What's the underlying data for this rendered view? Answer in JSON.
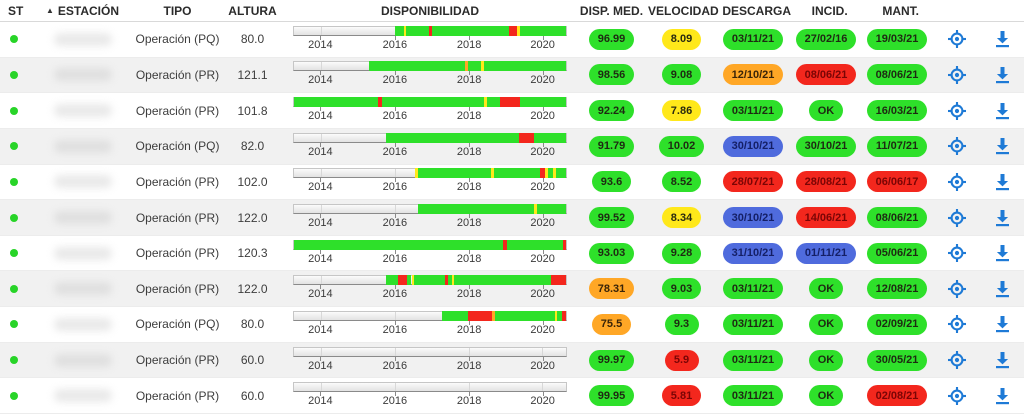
{
  "header": {
    "st": "ST",
    "estacion": "ESTACIÓN",
    "sort_icon": "▲",
    "tipo": "TIPO",
    "altura": "ALTURA",
    "disponibilidad": "DISPONIBILIDAD",
    "disp_med": "DISP. MED.",
    "velocidad": "VELOCIDAD",
    "descarga": "DESCARGA",
    "incid": "INCID.",
    "mant": "MANT."
  },
  "colors": {
    "green": "#2ee02a",
    "yellow": "#ffe81a",
    "orange": "#ffa726",
    "red": "#f3271d",
    "blue": "#4f6bdd",
    "status_dot": "#28d428",
    "icon_blue": "#1e7ad6"
  },
  "pill_text_colors": {
    "green": "#1e2a12",
    "yellow": "#2a2a10",
    "orange": "#3a2408",
    "red": "#7a0505",
    "blue": "#141f66"
  },
  "timeline": {
    "axis_years": [
      "2014",
      "2016",
      "2018",
      "2020"
    ],
    "tick_percents": [
      10,
      37.2,
      64.3,
      91.1
    ]
  },
  "rows": [
    {
      "status": "ok",
      "tipo": "Operación (PQ)",
      "altura": "80.0",
      "bar": [
        [
          37,
          40.3,
          "g"
        ],
        [
          40.3,
          41.3,
          "y"
        ],
        [
          41.3,
          49.5,
          "g"
        ],
        [
          49.5,
          50.6,
          "r"
        ],
        [
          50.6,
          79,
          "g"
        ],
        [
          79,
          82,
          "r"
        ],
        [
          82,
          83.2,
          "y"
        ],
        [
          83.2,
          100,
          "g"
        ]
      ],
      "disp_med": {
        "text": "96.99",
        "color": "green"
      },
      "velocidad": {
        "text": "8.09",
        "color": "yellow"
      },
      "descarga": {
        "text": "03/11/21",
        "color": "green"
      },
      "incid": {
        "text": "27/02/16",
        "color": "green"
      },
      "mant": {
        "text": "19/03/21",
        "color": "green"
      }
    },
    {
      "status": "ok",
      "tipo": "Operación (PR)",
      "altura": "121.1",
      "bar": [
        [
          27.5,
          62.8,
          "g"
        ],
        [
          62.8,
          63.8,
          "o"
        ],
        [
          63.8,
          68.8,
          "g"
        ],
        [
          68.8,
          69.8,
          "y"
        ],
        [
          69.8,
          100,
          "g"
        ]
      ],
      "disp_med": {
        "text": "98.56",
        "color": "green"
      },
      "velocidad": {
        "text": "9.08",
        "color": "green"
      },
      "descarga": {
        "text": "12/10/21",
        "color": "orange"
      },
      "incid": {
        "text": "08/06/21",
        "color": "red"
      },
      "mant": {
        "text": "08/06/21",
        "color": "green"
      }
    },
    {
      "status": "ok",
      "tipo": "Operación (PR)",
      "altura": "101.8",
      "bar": [
        [
          0,
          31,
          "g"
        ],
        [
          31,
          32.2,
          "r"
        ],
        [
          32.2,
          69.8,
          "g"
        ],
        [
          69.8,
          70.8,
          "y"
        ],
        [
          70.8,
          75.8,
          "g"
        ],
        [
          75.8,
          83,
          "r"
        ],
        [
          83,
          100,
          "g"
        ]
      ],
      "disp_med": {
        "text": "92.24",
        "color": "green"
      },
      "velocidad": {
        "text": "7.86",
        "color": "yellow"
      },
      "descarga": {
        "text": "03/11/21",
        "color": "green"
      },
      "incid": {
        "text": "OK",
        "color": "green"
      },
      "mant": {
        "text": "16/03/21",
        "color": "green"
      }
    },
    {
      "status": "ok",
      "tipo": "Operación (PQ)",
      "altura": "82.0",
      "bar": [
        [
          34,
          82.8,
          "g"
        ],
        [
          82.8,
          88.3,
          "r"
        ],
        [
          88.3,
          100,
          "g"
        ]
      ],
      "disp_med": {
        "text": "91.79",
        "color": "green"
      },
      "velocidad": {
        "text": "10.02",
        "color": "green"
      },
      "descarga": {
        "text": "30/10/21",
        "color": "blue"
      },
      "incid": {
        "text": "30/10/21",
        "color": "green"
      },
      "mant": {
        "text": "11/07/21",
        "color": "green"
      }
    },
    {
      "status": "ok",
      "tipo": "Operación (PR)",
      "altura": "102.0",
      "bar": [
        [
          44.5,
          45.6,
          "y"
        ],
        [
          45.6,
          72.4,
          "g"
        ],
        [
          72.4,
          73.4,
          "y"
        ],
        [
          73.4,
          90.3,
          "g"
        ],
        [
          90.3,
          92.4,
          "r"
        ],
        [
          92.4,
          93.4,
          "y"
        ],
        [
          93.4,
          95.2,
          "g"
        ],
        [
          95.2,
          96.2,
          "y"
        ],
        [
          96.2,
          100,
          "g"
        ]
      ],
      "disp_med": {
        "text": "93.6",
        "color": "green"
      },
      "velocidad": {
        "text": "8.52",
        "color": "green"
      },
      "descarga": {
        "text": "28/07/21",
        "color": "red"
      },
      "incid": {
        "text": "28/08/21",
        "color": "red"
      },
      "mant": {
        "text": "06/06/17",
        "color": "red"
      }
    },
    {
      "status": "ok",
      "tipo": "Operación (PR)",
      "altura": "122.0",
      "bar": [
        [
          45.5,
          88.4,
          "g"
        ],
        [
          88.4,
          89.5,
          "y"
        ],
        [
          89.5,
          100,
          "g"
        ]
      ],
      "disp_med": {
        "text": "99.52",
        "color": "green"
      },
      "velocidad": {
        "text": "8.34",
        "color": "yellow"
      },
      "descarga": {
        "text": "30/10/21",
        "color": "blue"
      },
      "incid": {
        "text": "14/06/21",
        "color": "red"
      },
      "mant": {
        "text": "08/06/21",
        "color": "green"
      }
    },
    {
      "status": "ok",
      "tipo": "Operación (PR)",
      "altura": "120.3",
      "bar": [
        [
          0,
          77,
          "g"
        ],
        [
          77,
          78.2,
          "r"
        ],
        [
          78.2,
          98.8,
          "g"
        ],
        [
          98.8,
          100,
          "r"
        ]
      ],
      "disp_med": {
        "text": "93.03",
        "color": "green"
      },
      "velocidad": {
        "text": "9.28",
        "color": "green"
      },
      "descarga": {
        "text": "31/10/21",
        "color": "blue"
      },
      "incid": {
        "text": "01/11/21",
        "color": "blue"
      },
      "mant": {
        "text": "05/06/21",
        "color": "green"
      }
    },
    {
      "status": "ok",
      "tipo": "Operación (PR)",
      "altura": "122.0",
      "bar": [
        [
          34,
          38.4,
          "g"
        ],
        [
          38.4,
          41.6,
          "r"
        ],
        [
          41.6,
          43.2,
          "g"
        ],
        [
          43.2,
          44.2,
          "y"
        ],
        [
          44.2,
          55.4,
          "g"
        ],
        [
          55.4,
          56.6,
          "r"
        ],
        [
          56.6,
          58,
          "g"
        ],
        [
          58,
          59,
          "y"
        ],
        [
          59,
          94.4,
          "g"
        ],
        [
          94.4,
          100,
          "r"
        ]
      ],
      "disp_med": {
        "text": "78.31",
        "color": "orange"
      },
      "velocidad": {
        "text": "9.03",
        "color": "green"
      },
      "descarga": {
        "text": "03/11/21",
        "color": "green"
      },
      "incid": {
        "text": "OK",
        "color": "green"
      },
      "mant": {
        "text": "12/08/21",
        "color": "green"
      }
    },
    {
      "status": "ok",
      "tipo": "Operación (PQ)",
      "altura": "80.0",
      "bar": [
        [
          54.5,
          63.8,
          "g"
        ],
        [
          63.8,
          72.8,
          "r"
        ],
        [
          72.8,
          73.8,
          "o"
        ],
        [
          73.8,
          95.8,
          "g"
        ],
        [
          95.8,
          96.8,
          "y"
        ],
        [
          96.8,
          98.4,
          "g"
        ],
        [
          98.4,
          100,
          "r"
        ]
      ],
      "disp_med": {
        "text": "75.5",
        "color": "orange"
      },
      "velocidad": {
        "text": "9.3",
        "color": "green"
      },
      "descarga": {
        "text": "03/11/21",
        "color": "green"
      },
      "incid": {
        "text": "OK",
        "color": "green"
      },
      "mant": {
        "text": "02/09/21",
        "color": "green"
      }
    },
    {
      "status": "ok",
      "tipo": "Operación (PR)",
      "altura": "60.0",
      "bar": [],
      "disp_med": {
        "text": "99.97",
        "color": "green"
      },
      "velocidad": {
        "text": "5.9",
        "color": "red"
      },
      "descarga": {
        "text": "03/11/21",
        "color": "green"
      },
      "incid": {
        "text": "OK",
        "color": "green"
      },
      "mant": {
        "text": "30/05/21",
        "color": "green"
      }
    },
    {
      "status": "ok",
      "tipo": "Operación (PR)",
      "altura": "60.0",
      "bar": [],
      "disp_med": {
        "text": "99.95",
        "color": "green"
      },
      "velocidad": {
        "text": "5.81",
        "color": "red"
      },
      "descarga": {
        "text": "03/11/21",
        "color": "green"
      },
      "incid": {
        "text": "OK",
        "color": "green"
      },
      "mant": {
        "text": "02/08/21",
        "color": "red"
      }
    }
  ]
}
